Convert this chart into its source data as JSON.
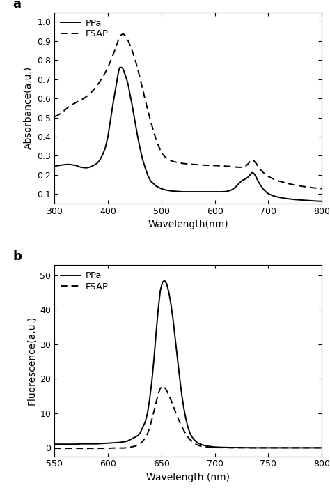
{
  "panel_a": {
    "label": "a",
    "xlabel": "Wavelength(nm)",
    "ylabel": "Absorbance(a.u.)",
    "xlim": [
      300,
      800
    ],
    "ylim": [
      0.05,
      1.05
    ],
    "yticks": [
      0.1,
      0.2,
      0.3,
      0.4,
      0.5,
      0.6,
      0.7,
      0.8,
      0.9,
      1.0
    ],
    "xticks": [
      300,
      400,
      500,
      600,
      700,
      800
    ],
    "PPa_x": [
      300,
      305,
      310,
      315,
      320,
      325,
      330,
      335,
      340,
      345,
      350,
      355,
      360,
      365,
      370,
      375,
      380,
      385,
      390,
      395,
      400,
      405,
      410,
      415,
      418,
      420,
      422,
      425,
      428,
      430,
      432,
      435,
      438,
      440,
      442,
      445,
      450,
      455,
      460,
      465,
      470,
      475,
      480,
      490,
      500,
      510,
      520,
      530,
      540,
      550,
      560,
      570,
      580,
      590,
      600,
      610,
      620,
      625,
      630,
      635,
      640,
      645,
      648,
      650,
      652,
      655,
      658,
      660,
      662,
      665,
      668,
      670,
      672,
      675,
      678,
      680,
      685,
      690,
      695,
      700,
      710,
      720,
      730,
      740,
      750,
      760,
      770,
      780,
      790,
      800
    ],
    "PPa_y": [
      0.245,
      0.248,
      0.25,
      0.252,
      0.254,
      0.255,
      0.254,
      0.252,
      0.25,
      0.244,
      0.24,
      0.238,
      0.237,
      0.24,
      0.246,
      0.252,
      0.262,
      0.278,
      0.305,
      0.34,
      0.4,
      0.49,
      0.58,
      0.66,
      0.71,
      0.742,
      0.76,
      0.762,
      0.755,
      0.742,
      0.725,
      0.7,
      0.67,
      0.64,
      0.61,
      0.57,
      0.49,
      0.41,
      0.34,
      0.28,
      0.235,
      0.195,
      0.168,
      0.142,
      0.128,
      0.12,
      0.116,
      0.114,
      0.112,
      0.112,
      0.112,
      0.112,
      0.112,
      0.112,
      0.112,
      0.112,
      0.113,
      0.116,
      0.12,
      0.128,
      0.14,
      0.155,
      0.163,
      0.168,
      0.172,
      0.176,
      0.18,
      0.184,
      0.188,
      0.197,
      0.207,
      0.212,
      0.21,
      0.2,
      0.185,
      0.172,
      0.148,
      0.128,
      0.113,
      0.102,
      0.09,
      0.083,
      0.078,
      0.074,
      0.071,
      0.069,
      0.067,
      0.065,
      0.063,
      0.062
    ],
    "FSAP_x": [
      300,
      305,
      310,
      315,
      320,
      325,
      330,
      335,
      340,
      345,
      350,
      355,
      360,
      365,
      370,
      375,
      380,
      385,
      390,
      395,
      400,
      405,
      410,
      415,
      418,
      420,
      422,
      425,
      428,
      430,
      432,
      435,
      440,
      445,
      450,
      455,
      460,
      465,
      470,
      475,
      480,
      490,
      500,
      510,
      520,
      530,
      540,
      550,
      560,
      570,
      580,
      590,
      600,
      610,
      620,
      630,
      640,
      645,
      650,
      655,
      658,
      660,
      663,
      665,
      668,
      670,
      673,
      675,
      678,
      680,
      685,
      690,
      695,
      700,
      710,
      720,
      730,
      740,
      750,
      760,
      770,
      780,
      790,
      800
    ],
    "FSAP_y": [
      0.505,
      0.51,
      0.518,
      0.528,
      0.54,
      0.552,
      0.562,
      0.57,
      0.578,
      0.585,
      0.592,
      0.6,
      0.61,
      0.62,
      0.635,
      0.65,
      0.668,
      0.688,
      0.71,
      0.735,
      0.762,
      0.795,
      0.83,
      0.868,
      0.892,
      0.908,
      0.92,
      0.932,
      0.936,
      0.934,
      0.928,
      0.918,
      0.888,
      0.852,
      0.81,
      0.762,
      0.706,
      0.648,
      0.59,
      0.534,
      0.48,
      0.385,
      0.315,
      0.285,
      0.272,
      0.265,
      0.26,
      0.257,
      0.255,
      0.253,
      0.251,
      0.25,
      0.249,
      0.248,
      0.246,
      0.244,
      0.241,
      0.24,
      0.24,
      0.242,
      0.246,
      0.252,
      0.26,
      0.268,
      0.276,
      0.278,
      0.274,
      0.268,
      0.258,
      0.248,
      0.228,
      0.214,
      0.202,
      0.192,
      0.178,
      0.168,
      0.16,
      0.153,
      0.147,
      0.142,
      0.138,
      0.134,
      0.131,
      0.128
    ],
    "legend": [
      "PPa",
      "FSAP"
    ]
  },
  "panel_b": {
    "label": "b",
    "xlabel": "Wavelength (nm)",
    "ylabel": "Fluorescence(a.u.)",
    "xlim": [
      550,
      800
    ],
    "ylim": [
      -2.5,
      53
    ],
    "yticks": [
      0,
      10,
      20,
      30,
      40,
      50
    ],
    "xticks": [
      550,
      600,
      650,
      700,
      750,
      800
    ],
    "PPa_x": [
      550,
      555,
      560,
      565,
      570,
      575,
      580,
      585,
      590,
      595,
      600,
      605,
      610,
      615,
      618,
      620,
      622,
      625,
      628,
      630,
      632,
      635,
      637,
      639,
      641,
      643,
      645,
      647,
      649,
      651,
      653,
      655,
      657,
      659,
      661,
      663,
      665,
      667,
      669,
      671,
      673,
      675,
      677,
      680,
      683,
      685,
      688,
      690,
      693,
      695,
      698,
      700,
      705,
      710,
      715,
      720,
      725,
      730,
      735,
      740,
      745,
      750,
      755,
      760,
      765,
      770,
      775,
      780,
      785,
      790,
      795,
      800
    ],
    "PPa_y": [
      1.0,
      1.0,
      1.0,
      1.0,
      1.0,
      1.1,
      1.1,
      1.1,
      1.1,
      1.2,
      1.3,
      1.4,
      1.5,
      1.7,
      1.9,
      2.2,
      2.5,
      3.0,
      3.5,
      4.2,
      5.5,
      7.5,
      10.0,
      14.0,
      19.0,
      25.5,
      33.0,
      40.0,
      45.5,
      48.0,
      48.5,
      47.5,
      45.0,
      41.5,
      37.0,
      31.5,
      26.0,
      20.5,
      15.5,
      11.5,
      8.2,
      5.8,
      4.0,
      2.5,
      1.6,
      1.2,
      0.85,
      0.65,
      0.45,
      0.35,
      0.25,
      0.18,
      0.1,
      0.06,
      0.03,
      0.01,
      0.0,
      -0.02,
      -0.05,
      -0.05,
      -0.05,
      -0.05,
      -0.05,
      -0.05,
      -0.05,
      -0.05,
      -0.05,
      -0.05,
      -0.05,
      -0.05,
      -0.05,
      -0.05
    ],
    "FSAP_x": [
      550,
      555,
      560,
      565,
      570,
      575,
      580,
      585,
      590,
      595,
      600,
      605,
      610,
      615,
      618,
      620,
      622,
      625,
      628,
      630,
      632,
      635,
      637,
      639,
      641,
      643,
      645,
      647,
      649,
      651,
      653,
      655,
      657,
      659,
      661,
      663,
      665,
      667,
      669,
      671,
      673,
      675,
      677,
      680,
      683,
      685,
      688,
      690,
      693,
      695,
      698,
      700,
      705,
      710,
      715,
      720,
      725,
      730,
      735,
      740,
      745,
      750,
      755,
      760,
      765,
      770,
      775,
      780,
      785,
      790,
      795,
      800
    ],
    "FSAP_y": [
      -0.2,
      -0.2,
      -0.2,
      -0.2,
      -0.2,
      -0.2,
      -0.2,
      -0.2,
      -0.2,
      -0.2,
      -0.2,
      -0.1,
      -0.1,
      -0.1,
      0.0,
      0.1,
      0.2,
      0.4,
      0.7,
      1.1,
      1.7,
      2.8,
      4.0,
      5.8,
      8.0,
      10.5,
      13.0,
      15.5,
      17.2,
      17.8,
      17.5,
      16.5,
      15.2,
      13.8,
      12.2,
      10.5,
      9.0,
      7.5,
      6.2,
      5.0,
      3.9,
      3.0,
      2.3,
      1.5,
      0.9,
      0.6,
      0.35,
      0.22,
      0.13,
      0.08,
      0.04,
      0.02,
      0.0,
      -0.02,
      -0.05,
      -0.05,
      -0.05,
      -0.05,
      -0.05,
      -0.05,
      -0.05,
      -0.05,
      -0.05,
      -0.05,
      -0.05,
      -0.05,
      -0.05,
      -0.05,
      -0.05,
      -0.05,
      -0.05,
      -0.05
    ],
    "legend": [
      "PPa",
      "FSAP"
    ]
  },
  "bg_color": "#ffffff",
  "line_color": "#000000",
  "linewidth": 1.4
}
